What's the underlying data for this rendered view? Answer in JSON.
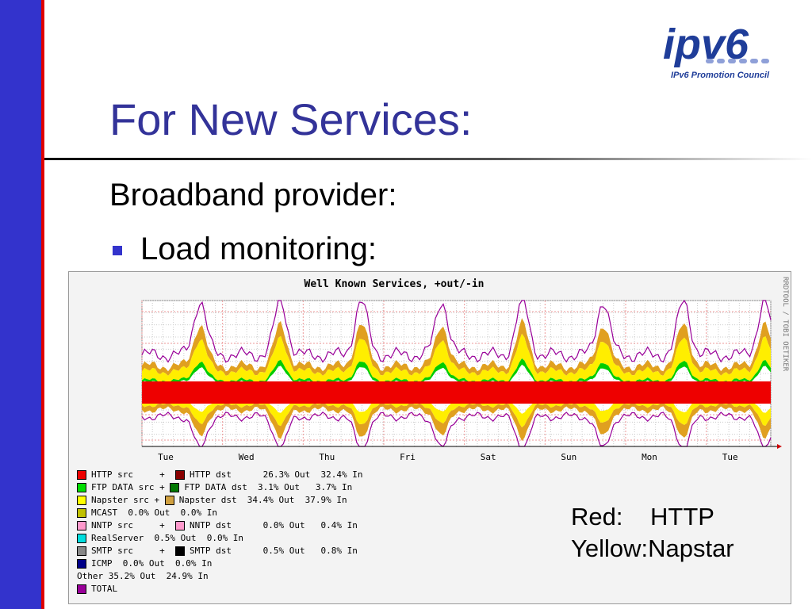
{
  "slide": {
    "title": "For New Services:",
    "subtitle": "Broadband provider:",
    "bullet": "Load monitoring:",
    "logo": {
      "text": "ipv6",
      "caption": "IPv6 Promotion Council",
      "color": "#1f3d99"
    },
    "note": {
      "red_key": "Red:",
      "red_value": "HTTP",
      "yellow_line": "Yellow:Napstar"
    }
  },
  "chart_data": {
    "type": "area",
    "title": "Well Known Services, +out/-in",
    "credit": "RRDTOOL / TOBI OETIKER",
    "x_labels": [
      "Tue",
      "Wed",
      "Thu",
      "Fri",
      "Sat",
      "Sun",
      "Mon",
      "Tue"
    ],
    "series_colors": {
      "http": "#ee0000",
      "napster": "#ffee00",
      "ftp": "#00cc00",
      "other": "#e0a020",
      "total": "#990099"
    },
    "legend": [
      {
        "color": "#ee0000",
        "text": "HTTP src     +  ",
        "color2": "#880000",
        "text2": "HTTP dst      26.3% Out  32.4% In"
      },
      {
        "color": "#00dd00",
        "text": "FTP DATA src + ",
        "color2": "#007700",
        "text2": "FTP DATA dst  3.1% Out   3.7% In"
      },
      {
        "color": "#ffff00",
        "text": "Napster src + ",
        "color2": "#d0a040",
        "text2": "Napster dst  34.4% Out  37.9% In"
      },
      {
        "color": "#c0c000",
        "text": "MCAST  0.0% Out  0.0% In",
        "color2": "",
        "text2": ""
      },
      {
        "color": "#ff99cc",
        "text": "NNTP src     +  ",
        "color2": "#ff99cc",
        "text2": "NNTP dst      0.0% Out   0.4% In"
      },
      {
        "color": "#00dddd",
        "text": "RealServer  0.5% Out  0.0% In",
        "color2": "",
        "text2": ""
      },
      {
        "color": "#888888",
        "text": "SMTP src     +  ",
        "color2": "#000000",
        "text2": "SMTP dst      0.5% Out   0.8% In"
      },
      {
        "color": "#000088",
        "text": "ICMP  0.0% Out  0.0% In",
        "color2": "",
        "text2": ""
      },
      {
        "color": "",
        "text": "Other 35.2% Out  24.9% In",
        "color2": "",
        "text2": ""
      },
      {
        "color": "#990099",
        "text": "TOTAL",
        "color2": "",
        "text2": ""
      }
    ]
  }
}
